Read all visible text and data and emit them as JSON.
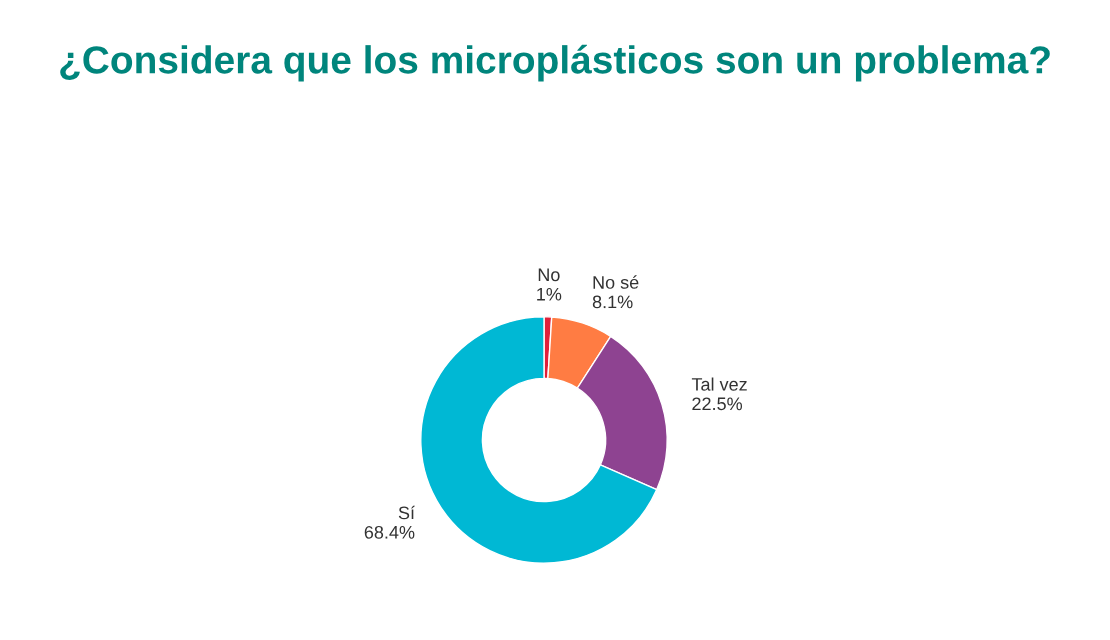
{
  "chart_data": {
    "type": "donut",
    "title": "¿Considera que los microplásticos son un problema?",
    "categories": [
      "No",
      "No sé",
      "Tal vez",
      "Sí"
    ],
    "values": [
      1,
      8.1,
      22.5,
      68.4
    ],
    "value_labels": [
      "1%",
      "8.1%",
      "22.5%",
      "68.4%"
    ],
    "colors": [
      "#e0203a",
      "#ff7c43",
      "#8e4391",
      "#00b8d4"
    ],
    "legend": false
  }
}
